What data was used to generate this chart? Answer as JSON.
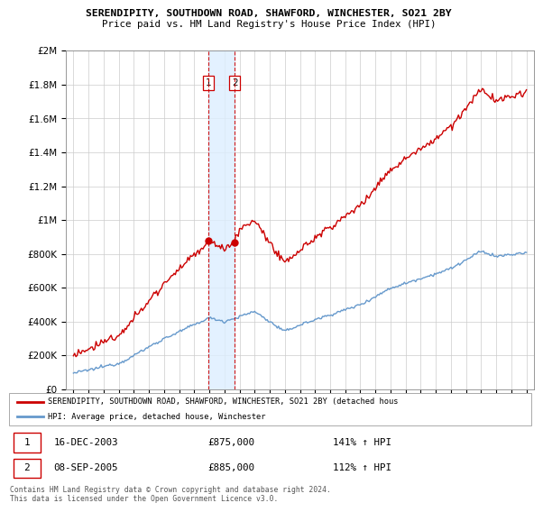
{
  "title1": "SERENDIPITY, SOUTHDOWN ROAD, SHAWFORD, WINCHESTER, SO21 2BY",
  "title2": "Price paid vs. HM Land Registry's House Price Index (HPI)",
  "legend_line1": "SERENDIPITY, SOUTHDOWN ROAD, SHAWFORD, WINCHESTER, SO21 2BY (detached hous",
  "legend_line2": "HPI: Average price, detached house, Winchester",
  "transaction1_date": "16-DEC-2003",
  "transaction1_price": "£875,000",
  "transaction1_hpi": "141% ↑ HPI",
  "transaction2_date": "08-SEP-2005",
  "transaction2_price": "£885,000",
  "transaction2_hpi": "112% ↑ HPI",
  "copyright": "Contains HM Land Registry data © Crown copyright and database right 2024.\nThis data is licensed under the Open Government Licence v3.0.",
  "red_color": "#cc0000",
  "blue_color": "#6699cc",
  "shading_color": "#ddeeff",
  "ylim_max": 2000000,
  "transaction1_year": 2003.96,
  "transaction2_year": 2005.69,
  "price_t1": 875000,
  "price_t2": 885000,
  "hpi_ratio_t1": 1.41,
  "hpi_ratio_t2": 1.12
}
